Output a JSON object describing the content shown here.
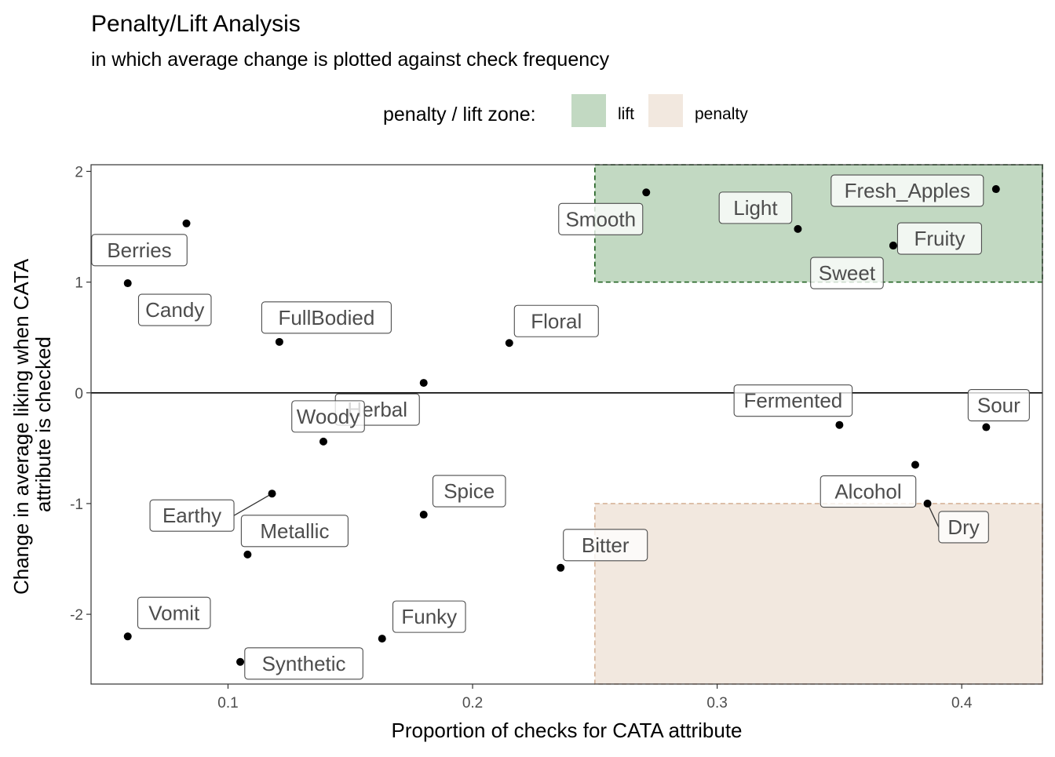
{
  "chart_data": {
    "type": "scatter",
    "title": "Penalty/Lift Analysis",
    "subtitle": "in which average change is plotted against check frequency",
    "xlabel": "Proportion of checks for CATA attribute",
    "ylabel": [
      "Change in average liking when CATA",
      "attribute is checked"
    ],
    "xlim": [
      0.044,
      0.433
    ],
    "ylim": [
      -2.63,
      2.06
    ],
    "x_ticks": [
      {
        "value": 0.1,
        "label": "0.1"
      },
      {
        "value": 0.2,
        "label": "0.2"
      },
      {
        "value": 0.3,
        "label": "0.3"
      },
      {
        "value": 0.4,
        "label": "0.4"
      }
    ],
    "y_ticks": [
      {
        "value": 2,
        "label": "2"
      },
      {
        "value": 1,
        "label": "1"
      },
      {
        "value": 0,
        "label": "0"
      },
      {
        "value": -1,
        "label": "-1"
      },
      {
        "value": -2,
        "label": "-2"
      }
    ],
    "grid": false,
    "reference_line_y": 0,
    "legend": {
      "title": "penalty / lift zone:",
      "position": "top",
      "items": [
        {
          "label": "lift",
          "color": "#c2d9c2"
        },
        {
          "label": "penalty",
          "color": "#f2e8df"
        }
      ]
    },
    "zones": [
      {
        "name": "lift",
        "x": [
          0.25,
          0.433
        ],
        "y": [
          1,
          2.06
        ],
        "fill": "#c2d9c2",
        "stroke": "#1a5c1a"
      },
      {
        "name": "penalty",
        "x": [
          0.25,
          0.433
        ],
        "y": [
          -2.63,
          -1
        ],
        "fill": "#f2e8df",
        "stroke": "#d6b49a"
      }
    ],
    "points": [
      {
        "label": "Berries",
        "x": 0.083,
        "y": 1.53
      },
      {
        "label": "Candy",
        "x": 0.059,
        "y": 0.99
      },
      {
        "label": "FullBodied",
        "x": 0.121,
        "y": 0.46
      },
      {
        "label": "Floral",
        "x": 0.215,
        "y": 0.45
      },
      {
        "label": "Herbal",
        "x": 0.18,
        "y": 0.09
      },
      {
        "label": "Woody",
        "x": 0.139,
        "y": -0.44
      },
      {
        "label": "Earthy",
        "x": 0.118,
        "y": -0.91
      },
      {
        "label": "Metallic",
        "x": 0.108,
        "y": -1.46
      },
      {
        "label": "Spice",
        "x": 0.18,
        "y": -1.1
      },
      {
        "label": "Bitter",
        "x": 0.236,
        "y": -1.58
      },
      {
        "label": "Vomit",
        "x": 0.059,
        "y": -2.2
      },
      {
        "label": "Synthetic",
        "x": 0.105,
        "y": -2.43
      },
      {
        "label": "Funky",
        "x": 0.163,
        "y": -2.22
      },
      {
        "label": "Smooth",
        "x": 0.271,
        "y": 1.81
      },
      {
        "label": "Light",
        "x": 0.333,
        "y": 1.48
      },
      {
        "label": "Fresh_Apples",
        "x": 0.414,
        "y": 1.84
      },
      {
        "label": "Fruity",
        "x": 0.372,
        "y": 1.33
      },
      {
        "label": "Sweet",
        "x": 0.372,
        "y": 1.33
      },
      {
        "label": "Fermented",
        "x": 0.35,
        "y": -0.29
      },
      {
        "label": "Sour",
        "x": 0.41,
        "y": -0.31
      },
      {
        "label": "Alcohol",
        "x": 0.381,
        "y": -0.65
      },
      {
        "label": "Dry",
        "x": 0.386,
        "y": -1.0
      }
    ]
  }
}
